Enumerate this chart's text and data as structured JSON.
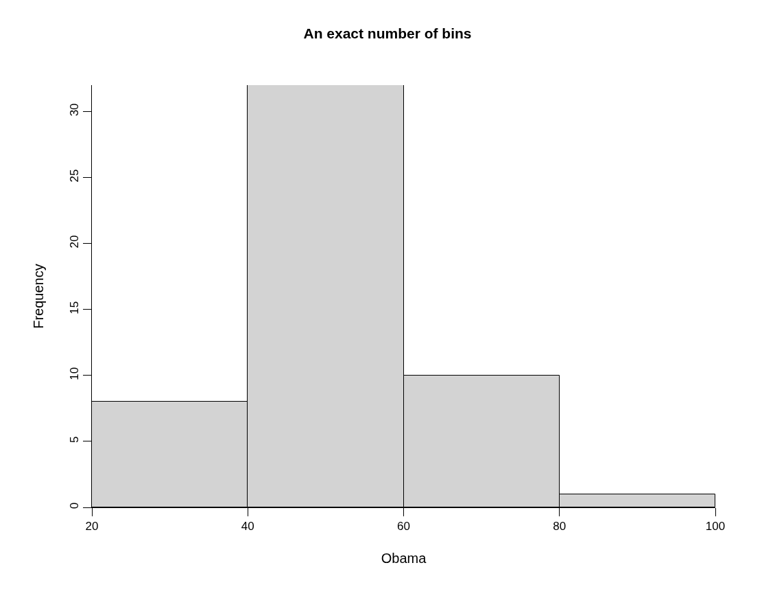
{
  "chart_data": {
    "type": "histogram",
    "title": "An exact number of bins",
    "xlabel": "Obama",
    "ylabel": "Frequency",
    "bins": [
      20,
      40,
      60,
      80,
      100
    ],
    "values": [
      8,
      32,
      10,
      1
    ],
    "color": "#d3d3d3",
    "xlim": [
      20,
      100
    ],
    "xticks": [
      20,
      40,
      60,
      80,
      100
    ],
    "ylim": [
      0,
      32
    ],
    "yticks": [
      0,
      5,
      10,
      15,
      20,
      25,
      30
    ]
  }
}
